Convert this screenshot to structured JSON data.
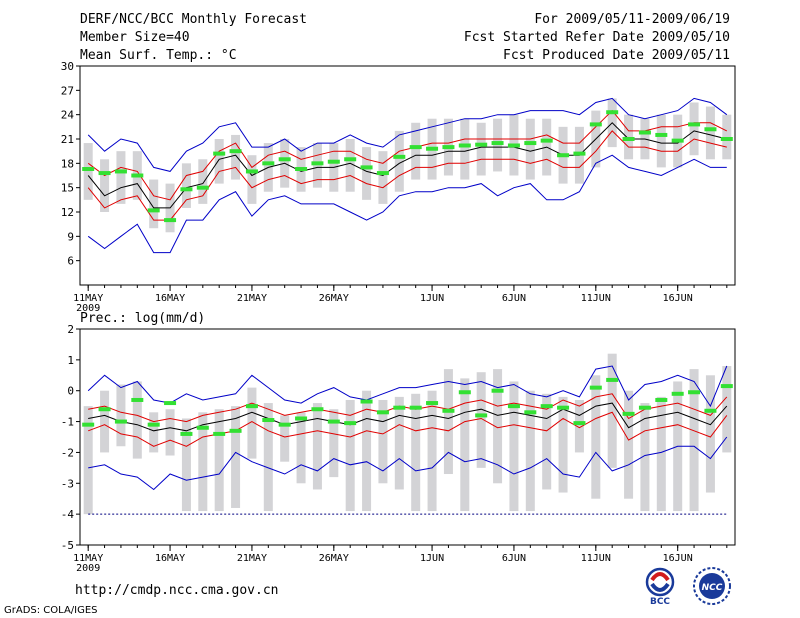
{
  "header": {
    "title": "DERF/NCC/BCC Monthly Forecast",
    "member_size": "Member Size=40",
    "variable": "Mean Surf. Temp.: °C",
    "period": "For 2009/05/11-2009/06/19",
    "started": "Fcst Started Refer Date 2009/05/10",
    "produced": "Fcst Produced Date 2009/05/11"
  },
  "footer": {
    "url": "http://cmdp.ncc.cma.gov.cn",
    "grads": "GrADS: COLA/IGES",
    "logo_left": "BCC",
    "logo_right": "NCC"
  },
  "colors": {
    "box": "#d3d3d6",
    "mean": "#000000",
    "spread": "#e00000",
    "envelope": "#0000c8",
    "marker": "#33e033"
  },
  "chart_data": [
    {
      "type": "line",
      "title": "Mean Surf. Temp.: °C",
      "xlabel": "",
      "ylabel": "",
      "ylim": [
        3,
        30
      ],
      "yticks": [
        6,
        9,
        12,
        15,
        18,
        21,
        24,
        27,
        30
      ],
      "x_tick_labels": [
        "11MAY",
        "16MAY",
        "21MAY",
        "26MAY",
        "1JUN",
        "6JUN",
        "11JUN",
        "16JUN"
      ],
      "x_tick_days": [
        1,
        6,
        11,
        16,
        22,
        27,
        32,
        37
      ],
      "x_sub_label": "2009",
      "days": 40,
      "series": [
        {
          "name": "max",
          "values": [
            21.5,
            19.5,
            21,
            20.5,
            17.5,
            17,
            19.5,
            20.5,
            22.5,
            23,
            20,
            20,
            21,
            19.5,
            20.5,
            20.5,
            21.5,
            20.5,
            20,
            21.5,
            22,
            22.5,
            23,
            23.5,
            23.5,
            24,
            24,
            24.5,
            24.5,
            24.5,
            24,
            25.5,
            26,
            24,
            23.5,
            24,
            24.5,
            26,
            25.5,
            24
          ]
        },
        {
          "name": "upper",
          "values": [
            18,
            16.5,
            17.5,
            17,
            14,
            13.5,
            16.5,
            17,
            19.5,
            20.5,
            17.5,
            19,
            19.5,
            18.5,
            19,
            19.5,
            19.5,
            18.5,
            18,
            19.5,
            20,
            20.5,
            20.5,
            21,
            21,
            21,
            21,
            21,
            21.5,
            20.5,
            20.5,
            22.5,
            24.5,
            22,
            22,
            22.5,
            22.5,
            23,
            23,
            22
          ]
        },
        {
          "name": "mean",
          "values": [
            16.5,
            14,
            15,
            15.5,
            12.5,
            12.5,
            15,
            15.5,
            18.5,
            19,
            16.5,
            17.5,
            18,
            17,
            17.5,
            17.5,
            18,
            17,
            16.5,
            18,
            19,
            19,
            19.5,
            19.5,
            20,
            20,
            20,
            19.5,
            20,
            19,
            19,
            21,
            23,
            21,
            21,
            20.5,
            20.5,
            22,
            21.5,
            21
          ]
        },
        {
          "name": "lower",
          "values": [
            15,
            12.5,
            13.5,
            14,
            11,
            11,
            13.5,
            14,
            17,
            17.5,
            15,
            16,
            16.5,
            15.5,
            16,
            16,
            16.5,
            15.5,
            15,
            16.5,
            17.5,
            17.5,
            18,
            18,
            18.5,
            18.5,
            18.5,
            18,
            18.5,
            17.5,
            17.5,
            19.5,
            22,
            20,
            20,
            19.5,
            19.5,
            21,
            20.5,
            20
          ]
        },
        {
          "name": "min",
          "values": [
            9,
            7.5,
            9,
            10.5,
            7,
            7,
            11,
            11,
            13.5,
            14.5,
            11.5,
            13.5,
            14,
            13,
            13,
            13,
            12,
            11,
            12,
            14,
            14.5,
            14.5,
            15,
            15,
            15.5,
            14,
            15,
            15.5,
            13.5,
            13.5,
            14.5,
            18,
            19,
            17.5,
            17,
            16.5,
            17.5,
            18.5,
            17.5,
            17.5
          ]
        }
      ],
      "markers": [
        17.3,
        16.8,
        17.0,
        16.5,
        12.2,
        11.0,
        14.8,
        15.0,
        19.2,
        19.5,
        17.0,
        18.0,
        18.5,
        17.3,
        18.0,
        18.2,
        18.5,
        17.5,
        16.8,
        18.8,
        20.0,
        19.8,
        20.0,
        20.2,
        20.3,
        20.5,
        20.2,
        20.5,
        20.8,
        19.0,
        19.2,
        22.8,
        24.3,
        21.0,
        21.8,
        21.5,
        20.8,
        22.8,
        22.2,
        21.0
      ],
      "box_low": [
        13.5,
        12,
        13,
        13.5,
        10,
        9.5,
        12.5,
        13,
        15.5,
        16,
        13,
        14.5,
        15,
        14.5,
        15,
        14.5,
        14.5,
        13.5,
        13,
        14.5,
        16,
        16,
        16.5,
        16,
        16.5,
        17,
        16.5,
        16,
        16.5,
        15.5,
        15.5,
        17.5,
        20,
        18.5,
        18.5,
        17.5,
        17.5,
        19,
        18.5,
        18.5
      ],
      "box_high": [
        20.5,
        18.5,
        19.5,
        19.5,
        16,
        15.5,
        18,
        18.5,
        21,
        21.5,
        19,
        20.5,
        21,
        20,
        20.5,
        20.5,
        21,
        20,
        19.5,
        22,
        23,
        23.5,
        23.5,
        23.5,
        23,
        23.5,
        24,
        23.5,
        23.5,
        22.5,
        22.5,
        24.5,
        26,
        24,
        23.5,
        24,
        24,
        25.5,
        25,
        24
      ]
    },
    {
      "type": "line",
      "title": "Prec.: log(mm/d)",
      "xlabel": "",
      "ylabel": "",
      "ylim": [
        -5,
        2
      ],
      "yticks": [
        -5,
        -4,
        -3,
        -2,
        -1,
        0,
        1,
        2
      ],
      "x_tick_labels": [
        "11MAY",
        "16MAY",
        "21MAY",
        "26MAY",
        "1JUN",
        "6JUN",
        "11JUN",
        "16JUN"
      ],
      "x_tick_days": [
        1,
        6,
        11,
        16,
        22,
        27,
        32,
        37
      ],
      "x_sub_label": "2009",
      "days": 40,
      "floor": -4,
      "series": [
        {
          "name": "max",
          "values": [
            0,
            0.5,
            0.1,
            0.3,
            -0.3,
            -0.4,
            -0.1,
            -0.3,
            -0.2,
            -0.1,
            0.5,
            0.1,
            -0.3,
            -0.4,
            -0.1,
            0.1,
            -0.2,
            -0.3,
            -0.1,
            0.1,
            0.1,
            0.2,
            0.3,
            0.2,
            0.3,
            0.1,
            0.2,
            -0.1,
            -0.2,
            0,
            -0.2,
            0.7,
            0.8,
            -0.3,
            0.2,
            0.3,
            0.5,
            0.3,
            -0.5,
            0.8
          ]
        },
        {
          "name": "upper",
          "values": [
            -0.6,
            -0.5,
            -0.7,
            -0.8,
            -1.0,
            -0.9,
            -1.0,
            -0.8,
            -0.7,
            -0.6,
            -0.4,
            -0.6,
            -0.8,
            -0.7,
            -0.6,
            -0.7,
            -0.8,
            -0.6,
            -0.7,
            -0.5,
            -0.6,
            -0.5,
            -0.6,
            -0.4,
            -0.3,
            -0.5,
            -0.4,
            -0.5,
            -0.6,
            -0.3,
            -0.5,
            -0.2,
            -0.1,
            -0.9,
            -0.6,
            -0.5,
            -0.4,
            -0.6,
            -0.8,
            -0.2
          ]
        },
        {
          "name": "mean",
          "values": [
            -0.9,
            -0.8,
            -1.0,
            -1.1,
            -1.3,
            -1.2,
            -1.3,
            -1.1,
            -1.0,
            -0.9,
            -0.7,
            -0.9,
            -1.1,
            -1.0,
            -0.9,
            -1.0,
            -1.1,
            -0.9,
            -1.0,
            -0.8,
            -0.9,
            -0.8,
            -0.9,
            -0.7,
            -0.6,
            -0.8,
            -0.7,
            -0.8,
            -0.9,
            -0.6,
            -0.8,
            -0.5,
            -0.4,
            -1.2,
            -0.9,
            -0.8,
            -0.7,
            -0.9,
            -1.1,
            -0.5
          ]
        },
        {
          "name": "lower",
          "values": [
            -1.3,
            -1.1,
            -1.4,
            -1.5,
            -1.8,
            -1.6,
            -1.8,
            -1.5,
            -1.4,
            -1.3,
            -1.0,
            -1.3,
            -1.5,
            -1.4,
            -1.3,
            -1.4,
            -1.5,
            -1.3,
            -1.4,
            -1.1,
            -1.3,
            -1.2,
            -1.3,
            -1.0,
            -0.9,
            -1.2,
            -1.1,
            -1.2,
            -1.3,
            -0.9,
            -1.2,
            -0.9,
            -0.7,
            -1.6,
            -1.3,
            -1.2,
            -1.1,
            -1.3,
            -1.5,
            -0.8
          ]
        },
        {
          "name": "min",
          "values": [
            -2.5,
            -2.4,
            -2.7,
            -2.8,
            -3.2,
            -2.7,
            -2.9,
            -2.8,
            -2.7,
            -2.0,
            -2.3,
            -2.5,
            -2.7,
            -2.4,
            -2.6,
            -2.2,
            -2.4,
            -2.3,
            -2.6,
            -2.2,
            -2.6,
            -2.5,
            -2.0,
            -2.3,
            -2.2,
            -2.4,
            -2.7,
            -2.5,
            -2.2,
            -2.7,
            -2.8,
            -2.0,
            -2.6,
            -2.4,
            -2.1,
            -2.0,
            -1.8,
            -1.8,
            -2.2,
            -1.5
          ]
        }
      ],
      "markers": [
        -1.1,
        -0.6,
        -1.0,
        -0.3,
        -1.1,
        -0.4,
        -1.4,
        -1.2,
        -1.4,
        -1.3,
        -0.5,
        -0.95,
        -1.1,
        -0.9,
        -0.6,
        -1.0,
        -1.05,
        -0.35,
        -0.7,
        -0.55,
        -0.55,
        -0.4,
        -0.65,
        -0.05,
        -0.8,
        0.0,
        -0.5,
        -0.7,
        -0.5,
        -0.55,
        -1.05,
        0.1,
        0.35,
        -0.75,
        -0.55,
        -0.3,
        -0.1,
        -0.05,
        -0.65,
        0.15
      ],
      "box_low": [
        -4.0,
        -2.0,
        -1.8,
        -2.2,
        -2.0,
        -2.1,
        -3.9,
        -3.9,
        -3.9,
        -3.8,
        -2.2,
        -3.9,
        -2.3,
        -3.0,
        -3.2,
        -2.8,
        -3.9,
        -3.9,
        -3.0,
        -3.2,
        -3.9,
        -3.9,
        -2.7,
        -3.9,
        -2.5,
        -3.0,
        -3.9,
        -3.9,
        -3.2,
        -3.3,
        -2.0,
        -3.5,
        -2.5,
        -3.5,
        -3.9,
        -3.9,
        -3.9,
        -3.9,
        -3.3,
        -2.0
      ],
      "box_high": [
        -0.5,
        0.0,
        0.2,
        0.3,
        -0.7,
        -0.6,
        -0.9,
        -0.7,
        -0.6,
        -0.5,
        0.1,
        -0.4,
        -0.8,
        -0.7,
        -0.4,
        -0.6,
        -0.3,
        0.0,
        -0.3,
        -0.2,
        -0.1,
        0.0,
        0.7,
        0.4,
        0.6,
        0.7,
        0.3,
        0.0,
        -0.1,
        -0.2,
        -0.3,
        0.5,
        1.2,
        0.0,
        -0.4,
        -0.2,
        0.3,
        0.7,
        0.5,
        0.8
      ]
    }
  ]
}
